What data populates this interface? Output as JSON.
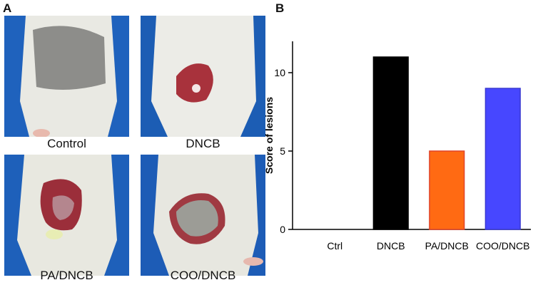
{
  "panel_a": {
    "letter": "A",
    "photos": [
      {
        "caption": "Control",
        "lesion": "shaved"
      },
      {
        "caption": "DNCB",
        "lesion": "inflamed-small"
      },
      {
        "caption": "PA/DNCB",
        "lesion": "inflamed-large"
      },
      {
        "caption": "COO/DNCB",
        "lesion": "inflamed-moderate"
      }
    ]
  },
  "panel_b": {
    "letter": "B"
  },
  "chart_data": {
    "type": "bar",
    "categories": [
      "Ctrl",
      "DNCB",
      "PA/DNCB",
      "COO/DNCB"
    ],
    "values": [
      0,
      11,
      5,
      9
    ],
    "colors": [
      "#000000",
      "#000000",
      "#ff6a13",
      "#4747ff"
    ],
    "edge_colors": [
      "#000000",
      "#000000",
      "#e0442a",
      "#3a3ad0"
    ],
    "title": "",
    "xlabel": "",
    "ylabel": "Score of lesions",
    "ylim": [
      0,
      12
    ],
    "yticks": [
      "0",
      "5",
      "10"
    ],
    "ytick_values": [
      0,
      5,
      10
    ],
    "grid": false
  }
}
